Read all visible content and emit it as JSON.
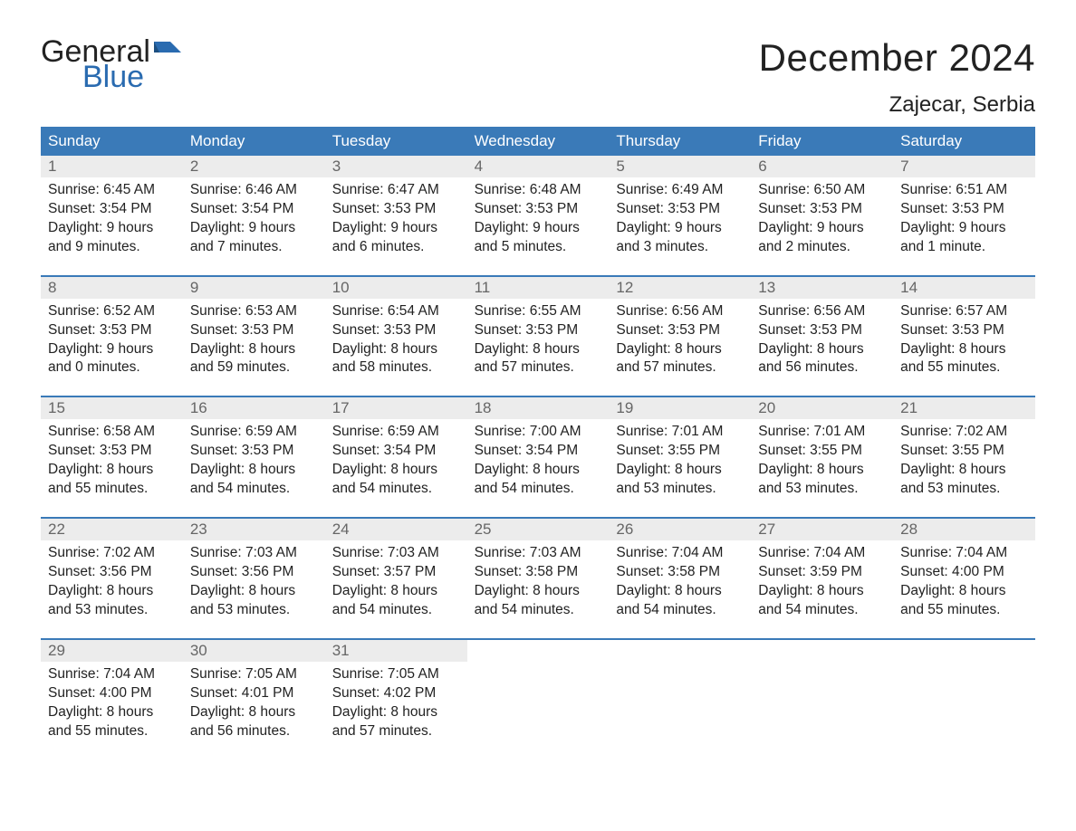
{
  "brand": {
    "word1": "General",
    "word2": "Blue",
    "brand_color": "#2a6bb0"
  },
  "title": "December 2024",
  "location": "Zajecar, Serbia",
  "colors": {
    "header_bg": "#3a7ab8",
    "header_text": "#ffffff",
    "daynum_bg": "#ececec",
    "daynum_text": "#666666",
    "text": "#222222",
    "week_border": "#3a7ab8"
  },
  "fonts": {
    "title_size_pt": 32,
    "location_size_pt": 18,
    "dow_size_pt": 13,
    "body_size_pt": 11
  },
  "dow": [
    "Sunday",
    "Monday",
    "Tuesday",
    "Wednesday",
    "Thursday",
    "Friday",
    "Saturday"
  ],
  "weeks": [
    [
      {
        "n": "1",
        "sr": "6:45 AM",
        "ss": "3:54 PM",
        "dl": "9 hours",
        "dm": "and 9 minutes."
      },
      {
        "n": "2",
        "sr": "6:46 AM",
        "ss": "3:54 PM",
        "dl": "9 hours",
        "dm": "and 7 minutes."
      },
      {
        "n": "3",
        "sr": "6:47 AM",
        "ss": "3:53 PM",
        "dl": "9 hours",
        "dm": "and 6 minutes."
      },
      {
        "n": "4",
        "sr": "6:48 AM",
        "ss": "3:53 PM",
        "dl": "9 hours",
        "dm": "and 5 minutes."
      },
      {
        "n": "5",
        "sr": "6:49 AM",
        "ss": "3:53 PM",
        "dl": "9 hours",
        "dm": "and 3 minutes."
      },
      {
        "n": "6",
        "sr": "6:50 AM",
        "ss": "3:53 PM",
        "dl": "9 hours",
        "dm": "and 2 minutes."
      },
      {
        "n": "7",
        "sr": "6:51 AM",
        "ss": "3:53 PM",
        "dl": "9 hours",
        "dm": "and 1 minute."
      }
    ],
    [
      {
        "n": "8",
        "sr": "6:52 AM",
        "ss": "3:53 PM",
        "dl": "9 hours",
        "dm": "and 0 minutes."
      },
      {
        "n": "9",
        "sr": "6:53 AM",
        "ss": "3:53 PM",
        "dl": "8 hours",
        "dm": "and 59 minutes."
      },
      {
        "n": "10",
        "sr": "6:54 AM",
        "ss": "3:53 PM",
        "dl": "8 hours",
        "dm": "and 58 minutes."
      },
      {
        "n": "11",
        "sr": "6:55 AM",
        "ss": "3:53 PM",
        "dl": "8 hours",
        "dm": "and 57 minutes."
      },
      {
        "n": "12",
        "sr": "6:56 AM",
        "ss": "3:53 PM",
        "dl": "8 hours",
        "dm": "and 57 minutes."
      },
      {
        "n": "13",
        "sr": "6:56 AM",
        "ss": "3:53 PM",
        "dl": "8 hours",
        "dm": "and 56 minutes."
      },
      {
        "n": "14",
        "sr": "6:57 AM",
        "ss": "3:53 PM",
        "dl": "8 hours",
        "dm": "and 55 minutes."
      }
    ],
    [
      {
        "n": "15",
        "sr": "6:58 AM",
        "ss": "3:53 PM",
        "dl": "8 hours",
        "dm": "and 55 minutes."
      },
      {
        "n": "16",
        "sr": "6:59 AM",
        "ss": "3:53 PM",
        "dl": "8 hours",
        "dm": "and 54 minutes."
      },
      {
        "n": "17",
        "sr": "6:59 AM",
        "ss": "3:54 PM",
        "dl": "8 hours",
        "dm": "and 54 minutes."
      },
      {
        "n": "18",
        "sr": "7:00 AM",
        "ss": "3:54 PM",
        "dl": "8 hours",
        "dm": "and 54 minutes."
      },
      {
        "n": "19",
        "sr": "7:01 AM",
        "ss": "3:55 PM",
        "dl": "8 hours",
        "dm": "and 53 minutes."
      },
      {
        "n": "20",
        "sr": "7:01 AM",
        "ss": "3:55 PM",
        "dl": "8 hours",
        "dm": "and 53 minutes."
      },
      {
        "n": "21",
        "sr": "7:02 AM",
        "ss": "3:55 PM",
        "dl": "8 hours",
        "dm": "and 53 minutes."
      }
    ],
    [
      {
        "n": "22",
        "sr": "7:02 AM",
        "ss": "3:56 PM",
        "dl": "8 hours",
        "dm": "and 53 minutes."
      },
      {
        "n": "23",
        "sr": "7:03 AM",
        "ss": "3:56 PM",
        "dl": "8 hours",
        "dm": "and 53 minutes."
      },
      {
        "n": "24",
        "sr": "7:03 AM",
        "ss": "3:57 PM",
        "dl": "8 hours",
        "dm": "and 54 minutes."
      },
      {
        "n": "25",
        "sr": "7:03 AM",
        "ss": "3:58 PM",
        "dl": "8 hours",
        "dm": "and 54 minutes."
      },
      {
        "n": "26",
        "sr": "7:04 AM",
        "ss": "3:58 PM",
        "dl": "8 hours",
        "dm": "and 54 minutes."
      },
      {
        "n": "27",
        "sr": "7:04 AM",
        "ss": "3:59 PM",
        "dl": "8 hours",
        "dm": "and 54 minutes."
      },
      {
        "n": "28",
        "sr": "7:04 AM",
        "ss": "4:00 PM",
        "dl": "8 hours",
        "dm": "and 55 minutes."
      }
    ],
    [
      {
        "n": "29",
        "sr": "7:04 AM",
        "ss": "4:00 PM",
        "dl": "8 hours",
        "dm": "and 55 minutes."
      },
      {
        "n": "30",
        "sr": "7:05 AM",
        "ss": "4:01 PM",
        "dl": "8 hours",
        "dm": "and 56 minutes."
      },
      {
        "n": "31",
        "sr": "7:05 AM",
        "ss": "4:02 PM",
        "dl": "8 hours",
        "dm": "and 57 minutes."
      },
      null,
      null,
      null,
      null
    ]
  ],
  "labels": {
    "sunrise": "Sunrise:",
    "sunset": "Sunset:",
    "daylight": "Daylight:"
  }
}
